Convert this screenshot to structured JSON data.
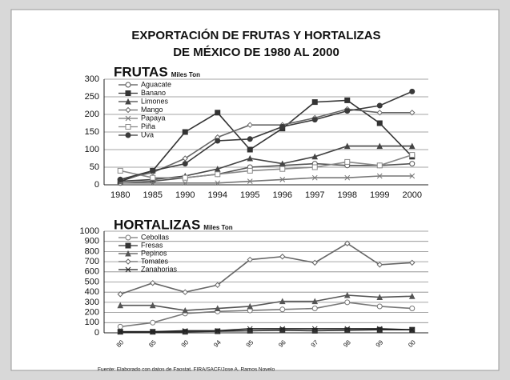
{
  "title_lines": [
    "EXPORTACIÓN DE FRUTAS Y HORTALIZAS",
    "DE MÉXICO DE 1980 AL 2000"
  ],
  "source": "Fuente: Elaborado con datos de Faostat. FIRA/SACF/Jose A. Ramos Novelo",
  "chart_data": [
    {
      "type": "line",
      "title": "FRUTAS",
      "subtitle": "Miles Ton",
      "categories": [
        "1980",
        "1985",
        "1990",
        "1994",
        "1995",
        "1996",
        "1997",
        "1998",
        "1999",
        "2000"
      ],
      "series": [
        {
          "name": "Aguacate",
          "color": "#555555",
          "values": [
            5,
            10,
            20,
            30,
            50,
            55,
            60,
            55,
            55,
            60
          ]
        },
        {
          "name": "Banano",
          "color": "#333333",
          "values": [
            10,
            40,
            150,
            205,
            100,
            160,
            235,
            240,
            175,
            80
          ]
        },
        {
          "name": "Limones",
          "color": "#444444",
          "values": [
            10,
            15,
            25,
            45,
            75,
            60,
            80,
            110,
            110,
            110
          ]
        },
        {
          "name": "Mango",
          "color": "#666666",
          "values": [
            15,
            35,
            75,
            135,
            170,
            170,
            190,
            215,
            205,
            205
          ]
        },
        {
          "name": "Papaya",
          "color": "#777777",
          "values": [
            5,
            5,
            5,
            5,
            10,
            15,
            20,
            20,
            25,
            25
          ]
        },
        {
          "name": "Piña",
          "color": "#888888",
          "values": [
            40,
            20,
            20,
            30,
            40,
            45,
            50,
            65,
            55,
            85
          ]
        },
        {
          "name": "Uva",
          "color": "#3a3a3a",
          "values": [
            15,
            40,
            60,
            125,
            130,
            165,
            185,
            210,
            225,
            265
          ]
        }
      ],
      "ylim": [
        0,
        300
      ],
      "yticks": [
        0,
        50,
        100,
        150,
        200,
        250,
        300
      ],
      "grid": true,
      "legend": "upper left"
    },
    {
      "type": "line",
      "title": "HORTALIZAS",
      "subtitle": "Miles Ton",
      "categories": [
        "80",
        "85",
        "90",
        "94",
        "95",
        "96",
        "97",
        "98",
        "99",
        "00"
      ],
      "series": [
        {
          "name": "Cebollas",
          "color": "#777777",
          "values": [
            60,
            100,
            190,
            210,
            220,
            230,
            240,
            300,
            260,
            240
          ]
        },
        {
          "name": "Fresas",
          "color": "#333333",
          "values": [
            10,
            10,
            10,
            15,
            20,
            25,
            20,
            25,
            30,
            30
          ]
        },
        {
          "name": "Pepinos",
          "color": "#555555",
          "values": [
            270,
            270,
            220,
            240,
            260,
            310,
            310,
            370,
            350,
            360
          ]
        },
        {
          "name": "Tomates",
          "color": "#666666",
          "values": [
            380,
            490,
            400,
            470,
            720,
            750,
            690,
            880,
            670,
            690
          ]
        },
        {
          "name": "Zanahorias",
          "color": "#222222",
          "values": [
            10,
            10,
            20,
            20,
            40,
            40,
            40,
            40,
            40,
            30
          ]
        }
      ],
      "ylim": [
        0,
        1000
      ],
      "yticks": [
        0,
        100,
        200,
        300,
        400,
        500,
        600,
        700,
        800,
        900,
        1000
      ],
      "grid": true,
      "legend": "upper left"
    }
  ]
}
